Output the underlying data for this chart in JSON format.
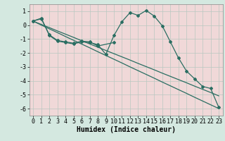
{
  "title": "",
  "xlabel": "Humidex (Indice chaleur)",
  "background_color": "#d4e8e0",
  "plot_bg_color": "#f0d8d8",
  "grid_color": "#b8c8c0",
  "line_color": "#2a6e62",
  "x_values": [
    0,
    1,
    2,
    3,
    4,
    5,
    6,
    7,
    8,
    9,
    10,
    11,
    12,
    13,
    14,
    15,
    16,
    17,
    18,
    19,
    20,
    21,
    22,
    23
  ],
  "line1_y": [
    0.3,
    0.5,
    -0.75,
    -1.15,
    -1.25,
    -1.35,
    -1.2,
    -1.25,
    -1.4,
    -2.1,
    -0.75,
    0.25,
    0.9,
    0.7,
    1.05,
    0.65,
    -0.05,
    -1.2,
    -2.35,
    -3.3,
    -3.85,
    -4.4,
    -4.55,
    -5.9
  ],
  "line2_y": [
    0.3,
    0.45,
    -0.7,
    -1.1,
    -1.2,
    -1.3,
    -1.15,
    -1.2,
    -1.5,
    null,
    -1.25,
    null,
    null,
    null,
    null,
    null,
    null,
    null,
    null,
    null,
    null,
    null,
    null,
    null
  ],
  "linear1_y": [
    0.28,
    0.0,
    -0.27,
    -0.54,
    -0.82,
    -1.09,
    -1.36,
    -1.63,
    -1.91,
    -2.18,
    -2.45,
    -2.72,
    -3.0,
    -3.27,
    -3.54,
    -3.81,
    -4.09,
    -4.36,
    -4.63,
    -4.9,
    -5.18,
    -5.45,
    -5.72,
    -5.99
  ],
  "linear2_y": [
    0.28,
    0.05,
    -0.18,
    -0.42,
    -0.65,
    -0.88,
    -1.12,
    -1.35,
    -1.58,
    -1.82,
    -2.05,
    -2.28,
    -2.51,
    -2.75,
    -2.98,
    -3.21,
    -3.45,
    -3.68,
    -3.91,
    -4.14,
    -4.38,
    -4.61,
    -4.84,
    -5.08
  ],
  "ylim": [
    -6.5,
    1.5
  ],
  "yticks": [
    1,
    0,
    -1,
    -2,
    -3,
    -4,
    -5,
    -6
  ],
  "xticks": [
    0,
    1,
    2,
    3,
    4,
    5,
    6,
    7,
    8,
    9,
    10,
    11,
    12,
    13,
    14,
    15,
    16,
    17,
    18,
    19,
    20,
    21,
    22,
    23
  ],
  "xlabel_fontsize": 7,
  "tick_fontsize": 6,
  "marker_size": 2.0,
  "line_width": 0.9
}
